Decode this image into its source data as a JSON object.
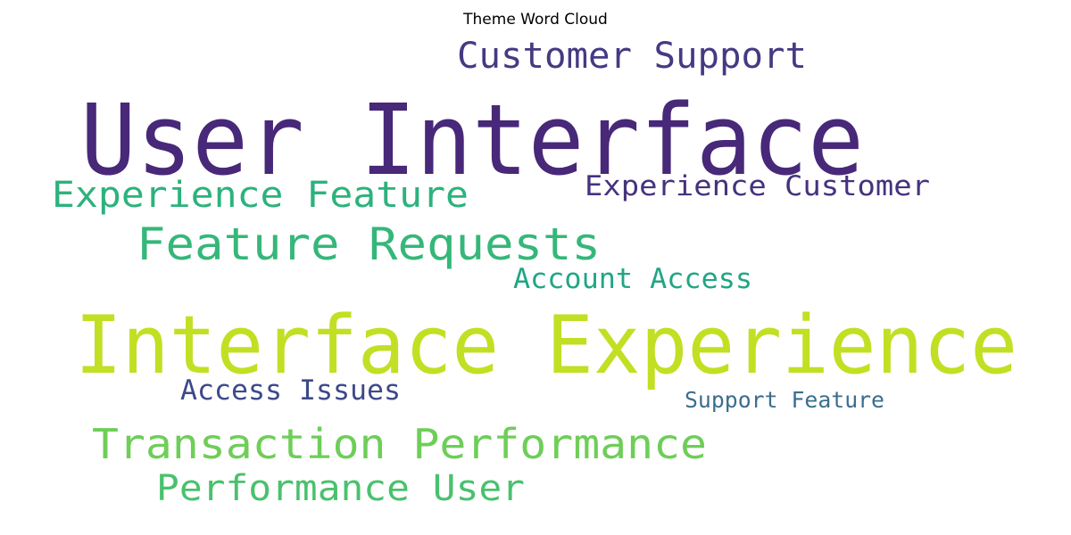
{
  "chart_data": {
    "type": "wordcloud",
    "title": "Theme Word Cloud",
    "words": [
      {
        "text": "User Interface",
        "color": "#482878"
      },
      {
        "text": "Interface Experience",
        "color": "#c2df23"
      },
      {
        "text": "Customer Support",
        "color": "#443a83"
      },
      {
        "text": "Experience Feature",
        "color": "#2db27d"
      },
      {
        "text": "Experience Customer",
        "color": "#46327e"
      },
      {
        "text": "Feature Requests",
        "color": "#35b779"
      },
      {
        "text": "Account Access",
        "color": "#21a685"
      },
      {
        "text": "Access Issues",
        "color": "#3e4989"
      },
      {
        "text": "Support Feature",
        "color": "#3b6e8e"
      },
      {
        "text": "Transaction Performance",
        "color": "#6ece58"
      },
      {
        "text": "Performance User",
        "color": "#4ac16d"
      }
    ]
  }
}
